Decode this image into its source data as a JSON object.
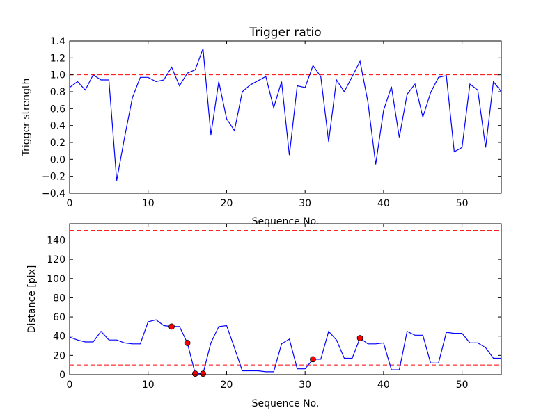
{
  "chart_data": [
    {
      "type": "line",
      "title": "Trigger ratio",
      "xlabel": "Sequence No.",
      "ylabel": "Trigger strength",
      "xlim": [
        0,
        55
      ],
      "ylim": [
        -0.4,
        1.4
      ],
      "xticks": [
        0,
        10,
        20,
        30,
        40,
        50
      ],
      "yticks": [
        -0.4,
        -0.2,
        0.0,
        0.2,
        0.4,
        0.6,
        0.8,
        1.0,
        1.2,
        1.4
      ],
      "ytick_labels": [
        "−0.4",
        "−0.2",
        "0.0",
        "0.2",
        "0.4",
        "0.6",
        "0.8",
        "1.0",
        "1.2",
        "1.4"
      ],
      "grid": false,
      "series": [
        {
          "color": "#0000ff",
          "x": [
            0,
            1,
            2,
            3,
            4,
            5,
            6,
            7,
            8,
            9,
            10,
            11,
            12,
            13,
            14,
            15,
            16,
            17,
            18,
            19,
            20,
            21,
            22,
            23,
            24,
            25,
            26,
            27,
            28,
            29,
            30,
            31,
            32,
            33,
            34,
            35,
            36,
            37,
            38,
            39,
            40,
            41,
            42,
            43,
            44,
            45,
            46,
            47,
            48,
            49,
            50,
            51,
            52,
            53,
            54,
            55
          ],
          "y": [
            0.85,
            0.92,
            0.82,
            1.0,
            0.94,
            0.94,
            -0.25,
            0.26,
            0.73,
            0.97,
            0.97,
            0.92,
            0.94,
            1.09,
            0.87,
            1.02,
            1.06,
            1.31,
            0.29,
            0.92,
            0.48,
            0.34,
            0.8,
            0.88,
            0.93,
            0.98,
            0.61,
            0.92,
            0.05,
            0.87,
            0.85,
            1.11,
            0.98,
            0.21,
            0.94,
            0.8,
            0.98,
            1.16,
            0.68,
            -0.06,
            0.58,
            0.86,
            0.26,
            0.77,
            0.89,
            0.5,
            0.79,
            0.97,
            0.99,
            0.09,
            0.14,
            0.89,
            0.82,
            0.14,
            0.92,
            0.8
          ]
        }
      ],
      "reference_lines": [
        {
          "y": 1.0,
          "color": "#ff0000",
          "style": "dashed"
        }
      ]
    },
    {
      "type": "line",
      "title": "",
      "xlabel": "Sequence No.",
      "ylabel": "Distance [pix]",
      "xlim": [
        0,
        55
      ],
      "ylim": [
        0,
        157
      ],
      "xticks": [
        0,
        10,
        20,
        30,
        40,
        50
      ],
      "yticks": [
        0,
        20,
        40,
        60,
        80,
        100,
        120,
        140
      ],
      "ytick_labels": [
        "0",
        "20",
        "40",
        "60",
        "80",
        "100",
        "120",
        "140"
      ],
      "grid": false,
      "series": [
        {
          "color": "#0000ff",
          "x": [
            0,
            1,
            2,
            3,
            4,
            5,
            6,
            7,
            8,
            9,
            10,
            11,
            12,
            13,
            14,
            15,
            16,
            17,
            18,
            19,
            20,
            21,
            22,
            23,
            24,
            25,
            26,
            27,
            28,
            29,
            30,
            31,
            32,
            33,
            34,
            35,
            36,
            37,
            38,
            39,
            40,
            41,
            42,
            43,
            44,
            45,
            46,
            47,
            48,
            49,
            50,
            51,
            52,
            53,
            54,
            55
          ],
          "y": [
            39,
            36,
            34,
            34,
            45,
            36,
            36,
            33,
            32,
            32,
            55,
            57,
            51,
            50,
            50,
            33,
            1,
            1,
            33,
            50,
            51,
            28,
            4,
            4,
            4,
            3,
            3,
            32,
            37,
            6,
            6,
            16,
            16,
            45,
            36,
            17,
            17,
            38,
            32,
            32,
            33,
            5,
            5,
            45,
            41,
            41,
            12,
            12,
            44,
            43,
            43,
            33,
            33,
            28,
            17,
            17
          ]
        },
        {
          "color": "#ff0000",
          "marker": "circle",
          "x": [
            13,
            15,
            16,
            17,
            31,
            37
          ],
          "y": [
            50,
            33,
            1,
            1,
            16,
            38
          ]
        }
      ],
      "reference_lines": [
        {
          "y": 150,
          "color": "#ff0000",
          "style": "dashed"
        },
        {
          "y": 10,
          "color": "#ff0000",
          "style": "dashed"
        }
      ]
    }
  ]
}
